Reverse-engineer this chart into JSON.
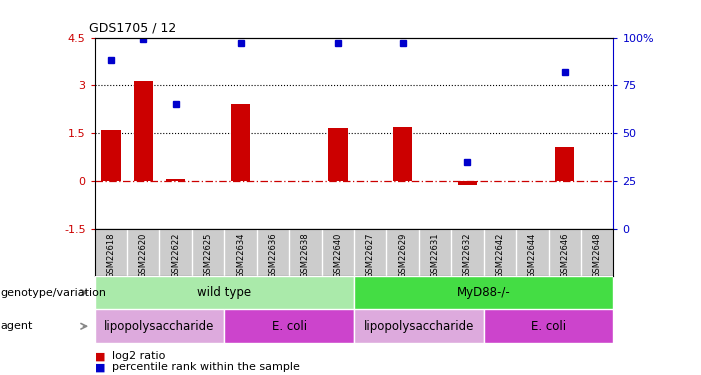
{
  "title": "GDS1705 / 12",
  "samples": [
    "GSM22618",
    "GSM22620",
    "GSM22622",
    "GSM22625",
    "GSM22634",
    "GSM22636",
    "GSM22638",
    "GSM22640",
    "GSM22627",
    "GSM22629",
    "GSM22631",
    "GSM22632",
    "GSM22642",
    "GSM22644",
    "GSM22646",
    "GSM22648"
  ],
  "log2_ratio": [
    1.6,
    3.15,
    0.05,
    0.0,
    2.4,
    0.0,
    0.0,
    1.65,
    0.0,
    1.7,
    0.0,
    -0.12,
    0.0,
    0.0,
    1.05,
    0.0
  ],
  "percentile": [
    88,
    99,
    65,
    null,
    97,
    null,
    null,
    97,
    null,
    97,
    null,
    35,
    null,
    null,
    82,
    null
  ],
  "bar_color": "#cc0000",
  "dot_color": "#0000cc",
  "ylim_left": [
    -1.5,
    4.5
  ],
  "ylim_right": [
    0,
    100
  ],
  "yticks_left": [
    -1.5,
    0,
    1.5,
    3,
    4.5
  ],
  "yticks_left_labels": [
    "-1.5",
    "0",
    "1.5",
    "3",
    "4.5"
  ],
  "yticks_right": [
    0,
    25,
    50,
    75,
    100
  ],
  "yticks_right_labels": [
    "0",
    "25",
    "50",
    "75",
    "100%"
  ],
  "hline_y": [
    0,
    1.5,
    3.0
  ],
  "hline_styles": [
    "dashdot",
    "dotted",
    "dotted"
  ],
  "hline_colors": [
    "#cc0000",
    "black",
    "black"
  ],
  "genotype_groups": [
    {
      "label": "wild type",
      "start": 0,
      "end": 8,
      "color": "#aaeaaa"
    },
    {
      "label": "MyD88-/-",
      "start": 8,
      "end": 16,
      "color": "#44dd44"
    }
  ],
  "agent_groups": [
    {
      "label": "lipopolysaccharide",
      "start": 0,
      "end": 4,
      "color": "#ddaadd"
    },
    {
      "label": "E. coli",
      "start": 4,
      "end": 8,
      "color": "#cc44cc"
    },
    {
      "label": "lipopolysaccharide",
      "start": 8,
      "end": 12,
      "color": "#ddaadd"
    },
    {
      "label": "E. coli",
      "start": 12,
      "end": 16,
      "color": "#cc44cc"
    }
  ],
  "legend_items": [
    {
      "label": "log2 ratio",
      "color": "#cc0000"
    },
    {
      "label": "percentile rank within the sample",
      "color": "#0000cc"
    }
  ],
  "row_labels": [
    "genotype/variation",
    "agent"
  ],
  "bar_width": 0.6,
  "sample_cell_color": "#cccccc",
  "background_color": "#ffffff"
}
